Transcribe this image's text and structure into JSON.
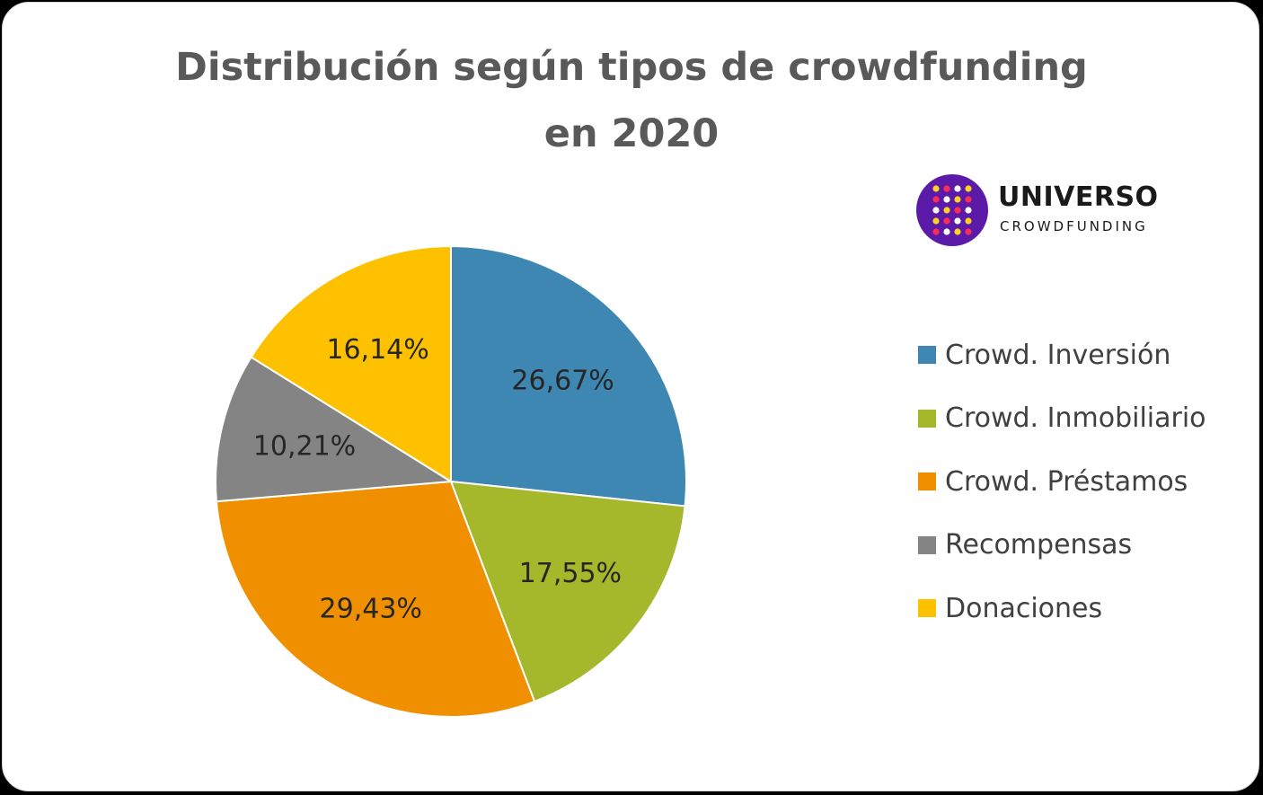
{
  "chart_data": {
    "type": "pie",
    "title": "Distribución según tipos de crowdfunding en 2020",
    "title_lines": [
      "Distribución según tipos de crowdfunding",
      "en 2020"
    ],
    "legend_position": "right",
    "categories": [
      "Crowd. Inversión",
      "Crowd. Inmobiliario",
      "Crowd. Préstamos",
      "Recompensas",
      "Donaciones"
    ],
    "values": [
      26.67,
      17.55,
      29.43,
      10.21,
      16.14
    ],
    "data_labels": [
      "26,67%",
      "17,55%",
      "29,43%",
      "10,21%",
      "16,14%"
    ],
    "colors": [
      "#3f87b3",
      "#a5b82c",
      "#f09000",
      "#848484",
      "#fdc100"
    ]
  },
  "logo": {
    "name": "UNIVERSO",
    "subtitle": "CROWDFUNDING",
    "circle_color": "#5b1aa8",
    "dot_colors": [
      "#ffd21e",
      "#ff2d55",
      "#ffffff"
    ]
  }
}
